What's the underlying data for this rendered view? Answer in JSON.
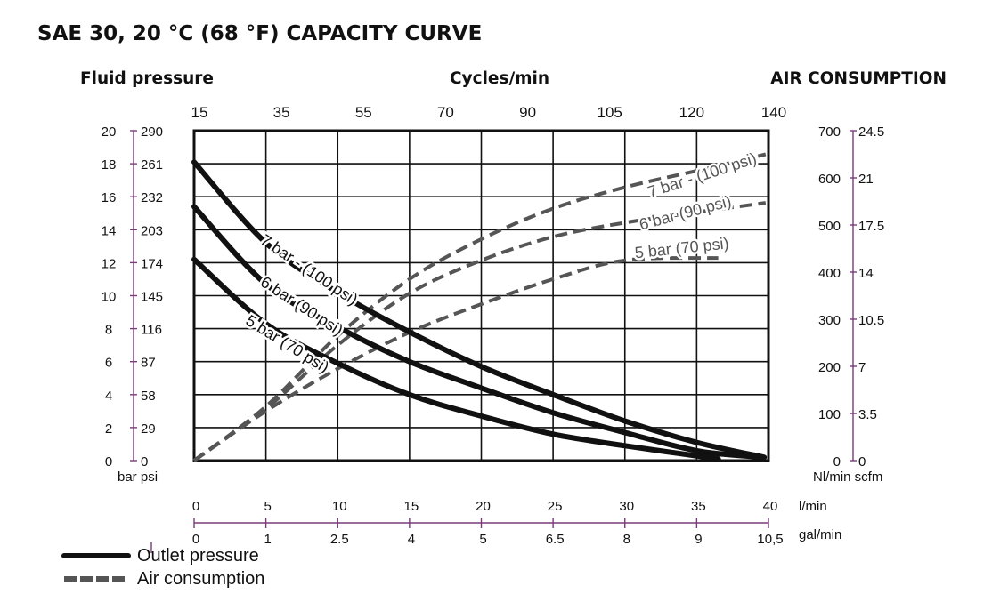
{
  "chart_data": {
    "type": "line",
    "title": "SAE 30, 20 °C (68 °F) CAPACITY CURVE",
    "left_axis_title": "Fluid pressure",
    "top_axis_title": "Cycles/min",
    "right_axis_title": "AIR CONSUMPTION",
    "left_axis": {
      "bar_ticks": [
        "0",
        "2",
        "4",
        "6",
        "8",
        "10",
        "12",
        "14",
        "16",
        "18",
        "20"
      ],
      "psi_ticks": [
        "0",
        "29",
        "58",
        "87",
        "116",
        "145",
        "174",
        "203",
        "232",
        "261",
        "290"
      ],
      "unit_label": "bar psi",
      "ylim": [
        0,
        20
      ]
    },
    "top_axis": {
      "ticks": [
        "15",
        "35",
        "55",
        "70",
        "90",
        "105",
        "120",
        "140"
      ]
    },
    "right_axis": {
      "nl_ticks": [
        "0",
        "100",
        "200",
        "300",
        "400",
        "500",
        "600",
        "700"
      ],
      "scfm_ticks": [
        "0",
        "3.5",
        "7",
        "10.5",
        "14",
        "17.5",
        "21",
        "24.5"
      ],
      "unit_label": "Nl/min scfm",
      "ylim": [
        0,
        700
      ]
    },
    "bottom_axis_lpm": {
      "ticks": [
        "0",
        "5",
        "10",
        "15",
        "20",
        "25",
        "30",
        "35",
        "40"
      ],
      "unit": "l/min",
      "xlim": [
        0,
        40
      ]
    },
    "bottom_axis_gpm": {
      "ticks": [
        "0",
        "1",
        "2.5",
        "4",
        "5",
        "6.5",
        "8",
        "9",
        "10,5"
      ],
      "unit": "gal/min"
    },
    "grid": true,
    "pressure_series": [
      {
        "name": "7 bar - (100 psi)",
        "x": [
          0,
          5,
          10,
          15,
          20,
          25,
          30,
          35,
          39.7
        ],
        "y": [
          18.1,
          13.2,
          10.2,
          7.8,
          5.7,
          4.0,
          2.4,
          1.1,
          0.2
        ]
      },
      {
        "name": "6 bar (90 psi)",
        "x": [
          0,
          5,
          10,
          15,
          20,
          25,
          30,
          35,
          39.6
        ],
        "y": [
          15.4,
          10.7,
          8.1,
          6.0,
          4.4,
          2.9,
          1.7,
          0.6,
          0.2
        ]
      },
      {
        "name": "5 bar (70 psi)",
        "x": [
          0,
          5,
          10,
          15,
          20,
          25,
          30,
          36.5
        ],
        "y": [
          12.2,
          8.3,
          5.9,
          4.0,
          2.7,
          1.6,
          0.9,
          0.1
        ]
      }
    ],
    "air_series": [
      {
        "name": "7 bar - (100 psi)",
        "x": [
          0,
          5,
          10,
          15,
          20,
          25,
          30,
          35,
          39.8
        ],
        "y": [
          0,
          115,
          265,
          385,
          470,
          535,
          580,
          615,
          650
        ]
      },
      {
        "name": "6 bar (90 psi)",
        "x": [
          0,
          5,
          10,
          15,
          20,
          25,
          30,
          35,
          39.8
        ],
        "y": [
          0,
          110,
          245,
          355,
          425,
          475,
          505,
          527,
          547
        ]
      },
      {
        "name": "5 bar (70 psi)",
        "x": [
          0,
          5,
          10,
          15,
          20,
          25,
          30,
          36.5
        ],
        "y": [
          0,
          105,
          195,
          272,
          332,
          385,
          425,
          430
        ]
      }
    ],
    "legend": [
      {
        "label": "Outlet pressure",
        "style": "solid",
        "color": "#111111"
      },
      {
        "label": "Air consumption",
        "style": "dashed",
        "color": "#555555"
      }
    ],
    "colors": {
      "pressure": "#111111",
      "air": "#555555",
      "axis_accent": "#7a3a7a",
      "grid": "#111111"
    }
  }
}
